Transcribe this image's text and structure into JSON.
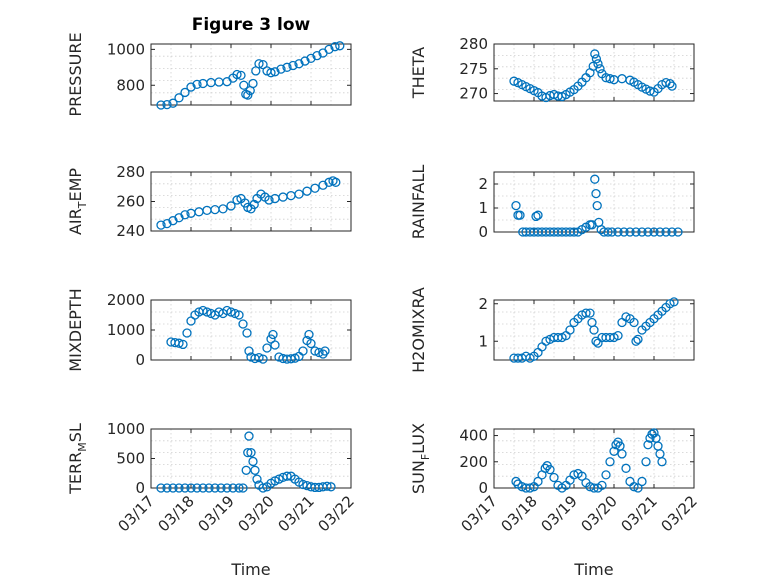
{
  "figure": {
    "title": "Figure 3 low",
    "xlabel": "Time",
    "marker_color": "#0072BD",
    "x_ticks": [
      "03/17",
      "03/18",
      "03/19",
      "03/20",
      "03/21",
      "03/22"
    ]
  },
  "chart_data": [
    {
      "type": "scatter",
      "ylabel": "PRESSURE",
      "xlim": [
        0,
        5
      ],
      "ylim": [
        690,
        1030
      ],
      "yticks": [
        800,
        1000
      ],
      "grid": true,
      "points": [
        [
          0.25,
          690
        ],
        [
          0.4,
          692
        ],
        [
          0.55,
          700
        ],
        [
          0.7,
          730
        ],
        [
          0.85,
          760
        ],
        [
          1.0,
          790
        ],
        [
          1.15,
          805
        ],
        [
          1.3,
          810
        ],
        [
          1.5,
          815
        ],
        [
          1.7,
          818
        ],
        [
          1.9,
          820
        ],
        [
          2.05,
          840
        ],
        [
          2.15,
          860
        ],
        [
          2.25,
          855
        ],
        [
          2.32,
          800
        ],
        [
          2.37,
          750
        ],
        [
          2.42,
          745
        ],
        [
          2.48,
          770
        ],
        [
          2.55,
          810
        ],
        [
          2.62,
          880
        ],
        [
          2.7,
          920
        ],
        [
          2.8,
          915
        ],
        [
          2.9,
          880
        ],
        [
          3.0,
          870
        ],
        [
          3.1,
          875
        ],
        [
          3.25,
          890
        ],
        [
          3.4,
          900
        ],
        [
          3.55,
          910
        ],
        [
          3.7,
          920
        ],
        [
          3.85,
          935
        ],
        [
          4.0,
          950
        ],
        [
          4.15,
          965
        ],
        [
          4.3,
          980
        ],
        [
          4.45,
          1000
        ],
        [
          4.6,
          1015
        ],
        [
          4.72,
          1020
        ]
      ]
    },
    {
      "type": "scatter",
      "ylabel": "THETA",
      "xlim": [
        0,
        5
      ],
      "ylim": [
        268.5,
        280
      ],
      "yticks": [
        270,
        275,
        280
      ],
      "grid": true,
      "points": [
        [
          0.5,
          272.5
        ],
        [
          0.6,
          272.2
        ],
        [
          0.7,
          271.8
        ],
        [
          0.8,
          271.4
        ],
        [
          0.9,
          271.0
        ],
        [
          1.0,
          270.6
        ],
        [
          1.1,
          270.2
        ],
        [
          1.2,
          269.5
        ],
        [
          1.3,
          269.2
        ],
        [
          1.4,
          269.6
        ],
        [
          1.5,
          269.8
        ],
        [
          1.6,
          269.5
        ],
        [
          1.7,
          269.4
        ],
        [
          1.8,
          269.8
        ],
        [
          1.9,
          270.3
        ],
        [
          2.0,
          270.8
        ],
        [
          2.1,
          271.5
        ],
        [
          2.2,
          272.3
        ],
        [
          2.3,
          273.2
        ],
        [
          2.4,
          274.2
        ],
        [
          2.48,
          275.5
        ],
        [
          2.52,
          278.0
        ],
        [
          2.56,
          277.0
        ],
        [
          2.6,
          276.0
        ],
        [
          2.65,
          275.0
        ],
        [
          2.7,
          274.0
        ],
        [
          2.8,
          273.2
        ],
        [
          2.9,
          273.0
        ],
        [
          3.0,
          272.8
        ],
        [
          3.2,
          273.0
        ],
        [
          3.4,
          272.7
        ],
        [
          3.5,
          272.3
        ],
        [
          3.6,
          271.8
        ],
        [
          3.7,
          271.3
        ],
        [
          3.8,
          270.9
        ],
        [
          3.9,
          270.5
        ],
        [
          4.0,
          270.3
        ],
        [
          4.1,
          271.0
        ],
        [
          4.2,
          271.8
        ],
        [
          4.3,
          272.2
        ],
        [
          4.4,
          272.0
        ],
        [
          4.45,
          271.5
        ]
      ]
    },
    {
      "type": "scatter",
      "ylabel": "AIR_TEMP",
      "xlim": [
        0,
        5
      ],
      "ylim": [
        240,
        280
      ],
      "yticks": [
        240,
        260,
        280
      ],
      "grid": true,
      "points": [
        [
          0.25,
          244
        ],
        [
          0.4,
          245
        ],
        [
          0.55,
          247
        ],
        [
          0.7,
          249
        ],
        [
          0.85,
          251
        ],
        [
          1.0,
          252
        ],
        [
          1.2,
          253
        ],
        [
          1.4,
          254
        ],
        [
          1.6,
          254.5
        ],
        [
          1.8,
          255
        ],
        [
          2.0,
          257
        ],
        [
          2.15,
          261
        ],
        [
          2.25,
          262
        ],
        [
          2.35,
          259
        ],
        [
          2.42,
          256
        ],
        [
          2.5,
          255
        ],
        [
          2.58,
          258
        ],
        [
          2.65,
          262
        ],
        [
          2.75,
          265
        ],
        [
          2.85,
          263
        ],
        [
          2.95,
          261
        ],
        [
          3.1,
          262
        ],
        [
          3.3,
          263
        ],
        [
          3.5,
          264
        ],
        [
          3.7,
          265
        ],
        [
          3.9,
          267
        ],
        [
          4.1,
          269
        ],
        [
          4.3,
          271
        ],
        [
          4.45,
          273
        ],
        [
          4.55,
          274
        ],
        [
          4.62,
          273
        ]
      ]
    },
    {
      "type": "scatter",
      "ylabel": "RAINFALL",
      "xlim": [
        0,
        5
      ],
      "ylim": [
        0,
        2.5
      ],
      "yticks": [
        0,
        1,
        2
      ],
      "grid": true,
      "points": [
        [
          0.55,
          1.1
        ],
        [
          0.6,
          0.7
        ],
        [
          0.65,
          0.7
        ],
        [
          0.72,
          0
        ],
        [
          0.8,
          0
        ],
        [
          0.9,
          0
        ],
        [
          1.0,
          0
        ],
        [
          1.1,
          0
        ],
        [
          1.2,
          0
        ],
        [
          1.3,
          0
        ],
        [
          1.4,
          0
        ],
        [
          1.5,
          0
        ],
        [
          1.05,
          0.65
        ],
        [
          1.1,
          0.7
        ],
        [
          1.6,
          0
        ],
        [
          1.7,
          0
        ],
        [
          1.8,
          0
        ],
        [
          1.9,
          0
        ],
        [
          2.0,
          0
        ],
        [
          2.1,
          0
        ],
        [
          2.2,
          0.1
        ],
        [
          2.3,
          0.2
        ],
        [
          2.4,
          0.3
        ],
        [
          2.45,
          0.3
        ],
        [
          2.52,
          2.2
        ],
        [
          2.55,
          1.6
        ],
        [
          2.58,
          1.1
        ],
        [
          2.62,
          0.4
        ],
        [
          2.68,
          0.1
        ],
        [
          2.75,
          0
        ],
        [
          2.85,
          0
        ],
        [
          2.95,
          0
        ],
        [
          3.1,
          0
        ],
        [
          3.25,
          0
        ],
        [
          3.4,
          0
        ],
        [
          3.55,
          0
        ],
        [
          3.7,
          0
        ],
        [
          3.85,
          0
        ],
        [
          4.0,
          0
        ],
        [
          4.15,
          0
        ],
        [
          4.3,
          0
        ],
        [
          4.45,
          0
        ],
        [
          4.6,
          0
        ]
      ]
    },
    {
      "type": "scatter",
      "ylabel": "MIXDEPTH",
      "xlim": [
        0,
        5
      ],
      "ylim": [
        0,
        2000
      ],
      "yticks": [
        0,
        1000,
        2000
      ],
      "grid": true,
      "points": [
        [
          0.5,
          600
        ],
        [
          0.6,
          580
        ],
        [
          0.7,
          560
        ],
        [
          0.8,
          520
        ],
        [
          0.9,
          900
        ],
        [
          1.0,
          1300
        ],
        [
          1.1,
          1500
        ],
        [
          1.2,
          1600
        ],
        [
          1.3,
          1650
        ],
        [
          1.4,
          1600
        ],
        [
          1.5,
          1550
        ],
        [
          1.6,
          1500
        ],
        [
          1.7,
          1600
        ],
        [
          1.8,
          1550
        ],
        [
          1.9,
          1650
        ],
        [
          2.0,
          1600
        ],
        [
          2.1,
          1550
        ],
        [
          2.2,
          1500
        ],
        [
          2.3,
          1200
        ],
        [
          2.4,
          900
        ],
        [
          2.45,
          300
        ],
        [
          2.5,
          100
        ],
        [
          2.6,
          50
        ],
        [
          2.7,
          80
        ],
        [
          2.8,
          30
        ],
        [
          2.9,
          400
        ],
        [
          3.0,
          700
        ],
        [
          3.05,
          850
        ],
        [
          3.1,
          500
        ],
        [
          3.2,
          100
        ],
        [
          3.3,
          50
        ],
        [
          3.4,
          30
        ],
        [
          3.5,
          40
        ],
        [
          3.6,
          60
        ],
        [
          3.7,
          120
        ],
        [
          3.8,
          300
        ],
        [
          3.9,
          650
        ],
        [
          3.95,
          850
        ],
        [
          4.0,
          550
        ],
        [
          4.1,
          300
        ],
        [
          4.2,
          250
        ],
        [
          4.3,
          200
        ],
        [
          4.35,
          300
        ]
      ]
    },
    {
      "type": "scatter",
      "ylabel": "H2OMIXRA",
      "xlim": [
        0,
        5
      ],
      "ylim": [
        0.5,
        2.1
      ],
      "yticks": [
        1,
        2
      ],
      "grid": true,
      "points": [
        [
          0.5,
          0.55
        ],
        [
          0.6,
          0.55
        ],
        [
          0.7,
          0.55
        ],
        [
          0.8,
          0.6
        ],
        [
          0.9,
          0.55
        ],
        [
          1.0,
          0.6
        ],
        [
          1.1,
          0.7
        ],
        [
          1.2,
          0.85
        ],
        [
          1.3,
          1.0
        ],
        [
          1.4,
          1.05
        ],
        [
          1.5,
          1.1
        ],
        [
          1.6,
          1.1
        ],
        [
          1.7,
          1.1
        ],
        [
          1.8,
          1.15
        ],
        [
          1.9,
          1.3
        ],
        [
          2.0,
          1.5
        ],
        [
          2.1,
          1.6
        ],
        [
          2.2,
          1.7
        ],
        [
          2.3,
          1.75
        ],
        [
          2.4,
          1.75
        ],
        [
          2.45,
          1.5
        ],
        [
          2.5,
          1.3
        ],
        [
          2.55,
          1.0
        ],
        [
          2.6,
          0.95
        ],
        [
          2.7,
          1.1
        ],
        [
          2.8,
          1.1
        ],
        [
          2.9,
          1.1
        ],
        [
          3.0,
          1.1
        ],
        [
          3.1,
          1.15
        ],
        [
          3.2,
          1.5
        ],
        [
          3.3,
          1.65
        ],
        [
          3.4,
          1.6
        ],
        [
          3.5,
          1.5
        ],
        [
          3.55,
          1.0
        ],
        [
          3.6,
          1.05
        ],
        [
          3.7,
          1.3
        ],
        [
          3.8,
          1.4
        ],
        [
          3.9,
          1.5
        ],
        [
          4.0,
          1.6
        ],
        [
          4.1,
          1.7
        ],
        [
          4.2,
          1.8
        ],
        [
          4.3,
          1.9
        ],
        [
          4.4,
          2.0
        ],
        [
          4.5,
          2.05
        ]
      ]
    },
    {
      "type": "scatter",
      "ylabel": "TERR_MSL",
      "xlim": [
        0,
        5
      ],
      "ylim": [
        0,
        1000
      ],
      "yticks": [
        0,
        500,
        1000
      ],
      "grid": true,
      "points": [
        [
          0.25,
          0
        ],
        [
          0.4,
          0
        ],
        [
          0.55,
          0
        ],
        [
          0.7,
          0
        ],
        [
          0.85,
          0
        ],
        [
          1.0,
          0
        ],
        [
          1.15,
          0
        ],
        [
          1.3,
          0
        ],
        [
          1.45,
          0
        ],
        [
          1.6,
          0
        ],
        [
          1.75,
          0
        ],
        [
          1.9,
          0
        ],
        [
          2.05,
          0
        ],
        [
          2.2,
          0
        ],
        [
          2.3,
          0
        ],
        [
          2.38,
          300
        ],
        [
          2.42,
          600
        ],
        [
          2.45,
          880
        ],
        [
          2.5,
          600
        ],
        [
          2.55,
          450
        ],
        [
          2.6,
          300
        ],
        [
          2.65,
          150
        ],
        [
          2.7,
          50
        ],
        [
          2.8,
          0
        ],
        [
          2.9,
          20
        ],
        [
          3.0,
          80
        ],
        [
          3.1,
          120
        ],
        [
          3.2,
          150
        ],
        [
          3.3,
          180
        ],
        [
          3.4,
          200
        ],
        [
          3.5,
          200
        ],
        [
          3.6,
          150
        ],
        [
          3.7,
          100
        ],
        [
          3.8,
          60
        ],
        [
          3.9,
          40
        ],
        [
          4.0,
          20
        ],
        [
          4.1,
          10
        ],
        [
          4.2,
          10
        ],
        [
          4.3,
          20
        ],
        [
          4.4,
          30
        ],
        [
          4.5,
          20
        ]
      ]
    },
    {
      "type": "scatter",
      "ylabel": "SUN_FLUX",
      "xlim": [
        0,
        5
      ],
      "ylim": [
        0,
        450
      ],
      "yticks": [
        0,
        200,
        400
      ],
      "grid": true,
      "points": [
        [
          0.55,
          50
        ],
        [
          0.6,
          30
        ],
        [
          0.7,
          10
        ],
        [
          0.8,
          0
        ],
        [
          0.9,
          0
        ],
        [
          1.0,
          10
        ],
        [
          1.1,
          50
        ],
        [
          1.2,
          100
        ],
        [
          1.28,
          150
        ],
        [
          1.33,
          170
        ],
        [
          1.4,
          140
        ],
        [
          1.5,
          80
        ],
        [
          1.6,
          20
        ],
        [
          1.7,
          0
        ],
        [
          1.8,
          20
        ],
        [
          1.9,
          60
        ],
        [
          2.0,
          100
        ],
        [
          2.1,
          110
        ],
        [
          2.2,
          90
        ],
        [
          2.3,
          40
        ],
        [
          2.4,
          10
        ],
        [
          2.5,
          0
        ],
        [
          2.6,
          0
        ],
        [
          2.7,
          20
        ],
        [
          2.8,
          100
        ],
        [
          2.9,
          200
        ],
        [
          3.0,
          280
        ],
        [
          3.05,
          330
        ],
        [
          3.1,
          350
        ],
        [
          3.15,
          320
        ],
        [
          3.2,
          260
        ],
        [
          3.3,
          150
        ],
        [
          3.4,
          50
        ],
        [
          3.5,
          10
        ],
        [
          3.6,
          0
        ],
        [
          3.7,
          50
        ],
        [
          3.8,
          200
        ],
        [
          3.85,
          330
        ],
        [
          3.9,
          380
        ],
        [
          3.95,
          410
        ],
        [
          4.0,
          420
        ],
        [
          4.05,
          380
        ],
        [
          4.1,
          320
        ],
        [
          4.15,
          260
        ],
        [
          4.2,
          200
        ]
      ]
    }
  ]
}
